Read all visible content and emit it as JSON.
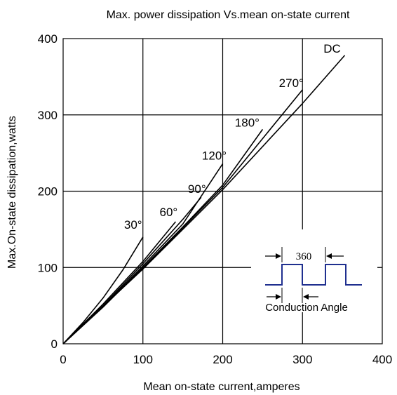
{
  "chart_data": {
    "type": "line",
    "title": "Max. power dissipation Vs.mean on-state current",
    "xlabel": "Mean on-state current,amperes",
    "ylabel": "Max.On-state dissipation,watts",
    "xlim": [
      0,
      400
    ],
    "ylim": [
      0,
      400
    ],
    "xticks": [
      0,
      100,
      200,
      300,
      400
    ],
    "yticks": [
      0,
      100,
      200,
      300,
      400
    ],
    "grid": true,
    "series": [
      {
        "name": "30°",
        "x": [
          0,
          25,
          50,
          75,
          100
        ],
        "y": [
          0,
          28,
          60,
          97,
          140
        ]
      },
      {
        "name": "60°",
        "x": [
          0,
          50,
          100,
          141
        ],
        "y": [
          0,
          52,
          108,
          160
        ]
      },
      {
        "name": "90°",
        "x": [
          0,
          50,
          100,
          150,
          173
        ],
        "y": [
          0,
          50,
          105,
          163,
          192
        ]
      },
      {
        "name": "120°",
        "x": [
          0,
          50,
          100,
          150,
          200
        ],
        "y": [
          0,
          49,
          102,
          157,
          236
        ]
      },
      {
        "name": "180°",
        "x": [
          0,
          50,
          100,
          150,
          200,
          250
        ],
        "y": [
          0,
          48,
          100,
          153,
          208,
          281
        ]
      },
      {
        "name": "270°",
        "x": [
          0,
          100,
          200,
          300
        ],
        "y": [
          0,
          99,
          205,
          333
        ]
      },
      {
        "name": "DC",
        "x": [
          0,
          100,
          200,
          300,
          353
        ],
        "y": [
          0,
          98,
          202,
          315,
          378
        ]
      }
    ],
    "inset": {
      "angle_label": "360",
      "caption": "Conduction Angle",
      "waveform_color": "#1f2f8f"
    }
  }
}
